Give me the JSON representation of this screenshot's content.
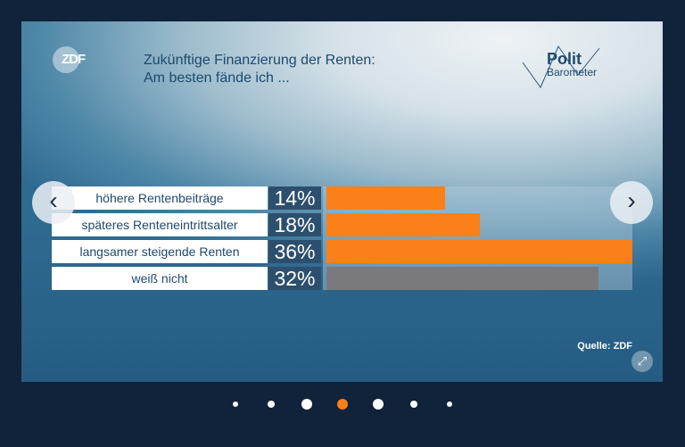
{
  "header": {
    "logo": "ZDF",
    "title_line1": "Zukünftige Finanzierung der Renten:",
    "title_line2": "Am besten fände ich ...",
    "brand_line1": "Polit",
    "brand_line2": "Barometer"
  },
  "chart_data": {
    "type": "bar",
    "orientation": "horizontal",
    "title": "Zukünftige Finanzierung der Renten: Am besten fände ich ...",
    "categories": [
      "höhere Rentenbeiträge",
      "späteres Renteneintrittsalter",
      "langsamer steigende Renten",
      "weiß nicht"
    ],
    "values": [
      14,
      18,
      36,
      32
    ],
    "labels": [
      "14%",
      "18%",
      "36%",
      "32%"
    ],
    "colors": [
      "#fb8019",
      "#fb8019",
      "#fb8019",
      "#7a7a7e"
    ],
    "xlim": [
      0,
      36
    ]
  },
  "footer": {
    "source": "Quelle: ZDF"
  },
  "carousel": {
    "prev": "‹",
    "next": "›",
    "expand": "⤢",
    "slide_count": 7,
    "active_index": 3,
    "accent": "#fb8019"
  }
}
